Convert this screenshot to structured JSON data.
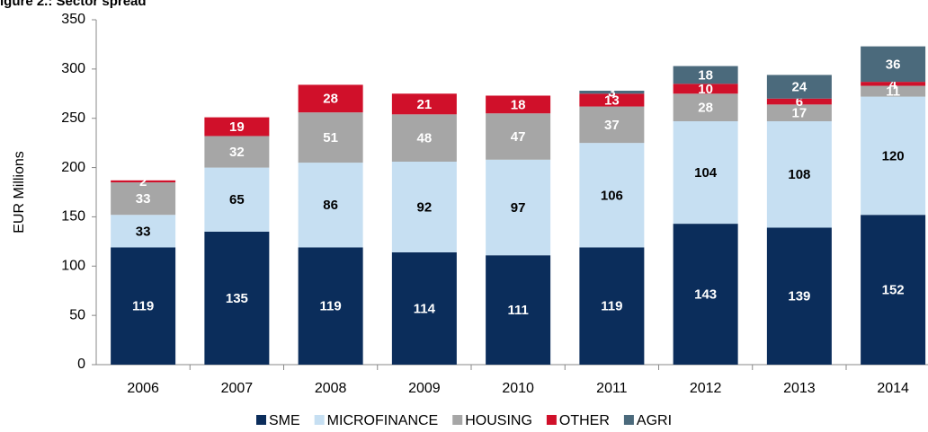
{
  "chart_data": {
    "type": "stacked_bar",
    "title": "igure 2.: Sector spread",
    "y_label": "EUR Millions",
    "categories": [
      "2006",
      "2007",
      "2008",
      "2009",
      "2010",
      "2011",
      "2012",
      "2013",
      "2014"
    ],
    "series": [
      {
        "name": "SME",
        "color": "#0b2d5b",
        "label_color": "#ffffff",
        "values": [
          119,
          135,
          119,
          114,
          111,
          119,
          143,
          139,
          152
        ]
      },
      {
        "name": "MICROFINANCE",
        "color": "#c6dff2",
        "label_color": "#000000",
        "values": [
          33,
          65,
          86,
          92,
          97,
          106,
          104,
          108,
          120
        ]
      },
      {
        "name": "HOUSING",
        "color": "#a6a6a6",
        "label_color": "#ffffff",
        "values": [
          33,
          32,
          51,
          48,
          47,
          37,
          28,
          17,
          11
        ]
      },
      {
        "name": "OTHER",
        "color": "#d0102a",
        "label_color": "#ffffff",
        "values": [
          2,
          19,
          28,
          21,
          18,
          13,
          10,
          6,
          4
        ]
      },
      {
        "name": "AGRI",
        "color": "#4b6a7c",
        "label_color": "#ffffff",
        "values": [
          null,
          null,
          null,
          null,
          null,
          3,
          18,
          24,
          36
        ]
      }
    ],
    "ylim": [
      0,
      350
    ],
    "yticks": [
      0,
      50,
      100,
      150,
      200,
      250,
      300,
      350
    ],
    "grid": false,
    "legend": "bottom"
  }
}
